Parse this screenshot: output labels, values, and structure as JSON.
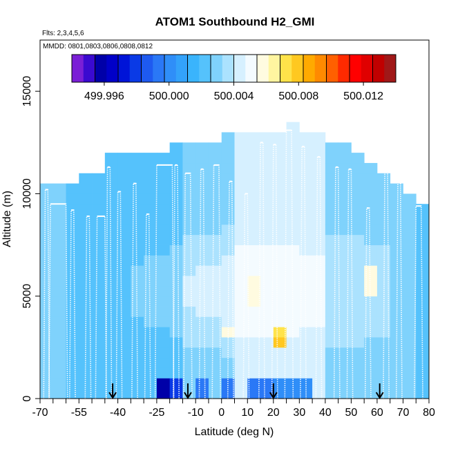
{
  "chart_data": {
    "type": "heatmap",
    "title": "ATOM1 Southbound H2_GMI",
    "annotations": [
      "Flts: 2,3,4,5,6",
      "MMDD: 0801,0803,0806,0808,0812"
    ],
    "xlabel": "Latitude (deg N)",
    "ylabel": "Altitude (m)",
    "xlim": [
      -70,
      80
    ],
    "ylim": [
      0,
      17500
    ],
    "x_ticks": [
      -70,
      -55,
      -40,
      -25,
      -10,
      0,
      10,
      20,
      30,
      40,
      50,
      60,
      70,
      80
    ],
    "x_tick_labels": [
      "-70",
      "-55",
      "-40",
      "-25",
      "-10",
      "0",
      "10",
      "20",
      "30",
      "40",
      "50",
      "60",
      "70",
      "80"
    ],
    "y_ticks": [
      0,
      5000,
      10000,
      15000
    ],
    "y_tick_labels": [
      "0",
      "5000",
      "10000",
      "15000"
    ],
    "colorbar": {
      "min": 499.994,
      "max": 500.014,
      "colors": [
        "#7a1fd6",
        "#3a0ad0",
        "#0000a8",
        "#0000c8",
        "#0014d8",
        "#0a3ae6",
        "#1e5af0",
        "#2a78f6",
        "#2f8ef8",
        "#33a2fa",
        "#3ab4fc",
        "#55c2fc",
        "#7fd2fc",
        "#abe2fe",
        "#d6f0ff",
        "#f4fbff",
        "#fffbe0",
        "#fff5a0",
        "#ffe34a",
        "#ffc820",
        "#ffaa00",
        "#ff8a00",
        "#ff6000",
        "#ff2a00",
        "#ff0000",
        "#e00000",
        "#c00000",
        "#a01818"
      ],
      "tick_values": [
        499.996,
        500.0,
        500.004,
        500.008,
        500.012
      ],
      "tick_labels": [
        "499.996",
        "500.000",
        "500.004",
        "500.008",
        "500.012"
      ]
    },
    "bin_grid": {
      "lat_start": -70,
      "lat_step": 5,
      "alt_step": 500,
      "columns": [
        {
          "lat": -70,
          "top": 10500,
          "base": 500.003
        },
        {
          "lat": -65,
          "top": 10500,
          "base": 500.003
        },
        {
          "lat": -60,
          "top": 10500,
          "base": 500.002
        },
        {
          "lat": -55,
          "top": 11000,
          "base": 500.002
        },
        {
          "lat": -50,
          "top": 11000,
          "base": 500.002
        },
        {
          "lat": -45,
          "top": 12000,
          "base": 500.002
        },
        {
          "lat": -40,
          "top": 12000,
          "base": 500.002
        },
        {
          "lat": -35,
          "top": 12000,
          "base": 500.002
        },
        {
          "lat": -30,
          "top": 12000,
          "base": 500.002
        },
        {
          "lat": -25,
          "top": 12000,
          "base": 500.002
        },
        {
          "lat": -20,
          "top": 12500,
          "base": 500.002
        },
        {
          "lat": -15,
          "top": 12500,
          "base": 500.003
        },
        {
          "lat": -10,
          "top": 12500,
          "base": 500.003
        },
        {
          "lat": -5,
          "top": 12500,
          "base": 500.003
        },
        {
          "lat": 0,
          "top": 13000,
          "base": 500.003
        },
        {
          "lat": 5,
          "top": 13000,
          "base": 500.004
        },
        {
          "lat": 10,
          "top": 13000,
          "base": 500.004
        },
        {
          "lat": 15,
          "top": 13000,
          "base": 500.004
        },
        {
          "lat": 20,
          "top": 13000,
          "base": 500.004
        },
        {
          "lat": 25,
          "top": 13500,
          "base": 500.004
        },
        {
          "lat": 30,
          "top": 13000,
          "base": 500.004
        },
        {
          "lat": 35,
          "top": 13000,
          "base": 500.004
        },
        {
          "lat": 40,
          "top": 12500,
          "base": 500.003
        },
        {
          "lat": 45,
          "top": 12500,
          "base": 500.003
        },
        {
          "lat": 50,
          "top": 12000,
          "base": 500.003
        },
        {
          "lat": 55,
          "top": 11500,
          "base": 500.003
        },
        {
          "lat": 60,
          "top": 11000,
          "base": 500.003
        },
        {
          "lat": 65,
          "top": 10500,
          "base": 500.003
        },
        {
          "lat": 70,
          "top": 10000,
          "base": 500.003
        },
        {
          "lat": 75,
          "top": 9500,
          "base": 500.002
        }
      ],
      "bright_spots": [
        {
          "lat": 20,
          "alt": 2500,
          "value": 500.008
        },
        {
          "lat": 20,
          "alt": 3000,
          "value": 500.007
        },
        {
          "lat": 55,
          "alt": 5000,
          "value": 500.006
        },
        {
          "lat": 55,
          "alt": 5500,
          "value": 500.006
        },
        {
          "lat": 55,
          "alt": 6000,
          "value": 500.006
        },
        {
          "lat": 0,
          "alt": 3000,
          "value": 500.006
        },
        {
          "lat": 5,
          "alt": 3000,
          "value": 500.005
        }
      ],
      "near_surface_low": [
        {
          "lat": -25,
          "value": 499.996
        },
        {
          "lat": -20,
          "value": 499.998
        },
        {
          "lat": -10,
          "value": 499.999
        },
        {
          "lat": 0,
          "value": 499.999
        },
        {
          "lat": 10,
          "value": 499.999
        },
        {
          "lat": 15,
          "value": 499.999
        },
        {
          "lat": 20,
          "value": 500.0
        },
        {
          "lat": 25,
          "value": 500.0
        },
        {
          "lat": 30,
          "value": 500.0
        }
      ]
    },
    "flight_profiles": [
      {
        "lat0": -68,
        "lat1": -67,
        "peak": 10200
      },
      {
        "lat0": -66,
        "lat1": -60,
        "peak": 9500
      },
      {
        "lat0": -58,
        "lat1": -57,
        "peak": 9200
      },
      {
        "lat0": -52,
        "lat1": -51,
        "peak": 8900
      },
      {
        "lat0": -48,
        "lat1": -45,
        "peak": 8900
      },
      {
        "lat0": -44,
        "lat1": -43,
        "peak": 11300
      },
      {
        "lat0": -40,
        "lat1": -39,
        "peak": 10100
      },
      {
        "lat0": -34,
        "lat1": -33,
        "peak": 10500
      },
      {
        "lat0": -29,
        "lat1": -28,
        "peak": 9000
      },
      {
        "lat0": -25,
        "lat1": -19,
        "peak": 11400
      },
      {
        "lat0": -18,
        "lat1": -17,
        "peak": 11400
      },
      {
        "lat0": -14,
        "lat1": -12,
        "peak": 11000
      },
      {
        "lat0": -8,
        "lat1": -7,
        "peak": 11200
      },
      {
        "lat0": -3,
        "lat1": -1,
        "peak": 11400
      },
      {
        "lat0": 3,
        "lat1": 4,
        "peak": 10600
      },
      {
        "lat0": 9,
        "lat1": 10,
        "peak": 10000
      },
      {
        "lat0": 15,
        "lat1": 16,
        "peak": 12500
      },
      {
        "lat0": 20,
        "lat1": 21,
        "peak": 12400
      },
      {
        "lat0": 25,
        "lat1": 27,
        "peak": 13100
      },
      {
        "lat0": 31,
        "lat1": 32,
        "peak": 12300
      },
      {
        "lat0": 37,
        "lat1": 38,
        "peak": 11800
      },
      {
        "lat0": 44,
        "lat1": 45,
        "peak": 11300
      },
      {
        "lat0": 49,
        "lat1": 50,
        "peak": 11200
      },
      {
        "lat0": 56,
        "lat1": 57,
        "peak": 9300
      },
      {
        "lat0": 63,
        "lat1": 64,
        "peak": 11700
      },
      {
        "lat0": 68,
        "lat1": 69,
        "peak": 10600
      },
      {
        "lat0": 75,
        "lat1": 77,
        "peak": 9400
      }
    ],
    "arrow_latitudes": [
      -42,
      -13,
      20,
      61
    ]
  }
}
